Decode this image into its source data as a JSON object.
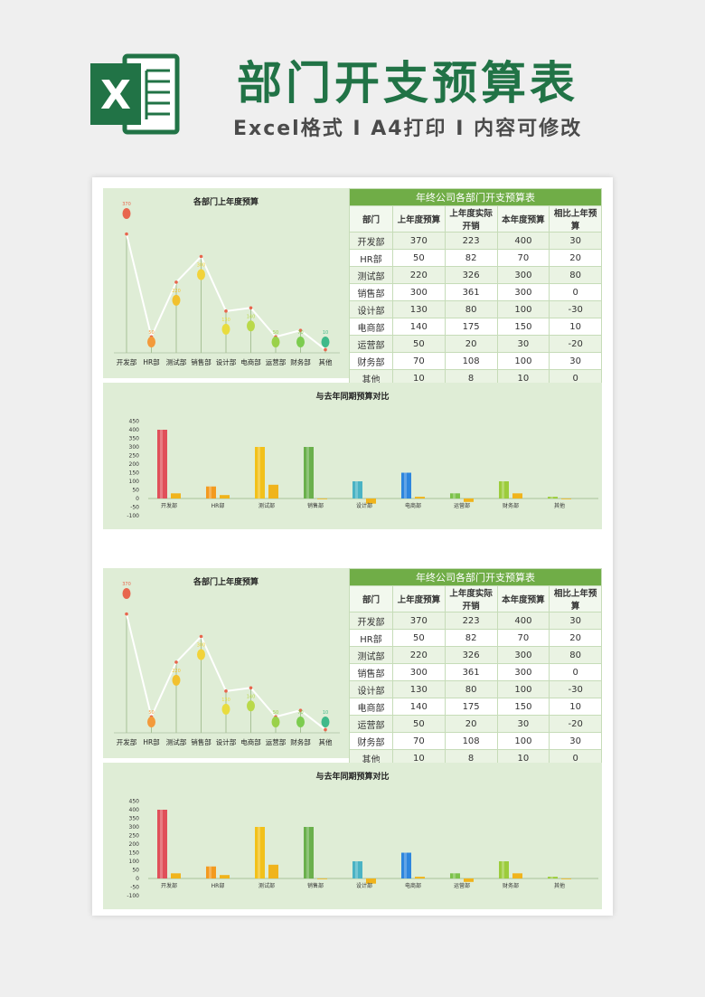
{
  "header": {
    "title": "部门开支预算表",
    "subtitle": "Excel格式 I A4打印 I 内容可修改",
    "logo_letter": "X",
    "brand_color": "#217346"
  },
  "table": {
    "title": "年终公司各部门开支预算表",
    "columns": [
      "部门",
      "上年度预算",
      "上年度实际开销",
      "本年度预算",
      "相比上年预算"
    ],
    "rows": [
      [
        "开发部",
        "370",
        "223",
        "400",
        "30"
      ],
      [
        "HR部",
        "50",
        "82",
        "70",
        "20"
      ],
      [
        "测试部",
        "220",
        "326",
        "300",
        "80"
      ],
      [
        "销售部",
        "300",
        "361",
        "300",
        "0"
      ],
      [
        "设计部",
        "130",
        "80",
        "100",
        "-30"
      ],
      [
        "电商部",
        "140",
        "175",
        "150",
        "10"
      ],
      [
        "运营部",
        "50",
        "20",
        "30",
        "-20"
      ],
      [
        "财务部",
        "70",
        "108",
        "100",
        "30"
      ],
      [
        "其他",
        "10",
        "8",
        "10",
        "0"
      ]
    ]
  },
  "chart_data": [
    {
      "type": "line",
      "title": "各部门上年度预算",
      "categories": [
        "开发部",
        "HR部",
        "测试部",
        "销售部",
        "设计部",
        "电商部",
        "运营部",
        "财务部",
        "其他"
      ],
      "values": [
        370,
        50,
        220,
        300,
        130,
        140,
        50,
        70,
        10
      ],
      "ylim": [
        0,
        400
      ],
      "marker_colors": [
        "#e8664e",
        "#f39a3b",
        "#f2c12e",
        "#f2d33a",
        "#e9dc3e",
        "#b9d94a",
        "#9ad14a",
        "#7ccc4f",
        "#3fb98a"
      ]
    },
    {
      "type": "bar",
      "title": "与去年同期预算对比",
      "categories": [
        "开发部",
        "HR部",
        "测试部",
        "销售部",
        "设计部",
        "电商部",
        "运营部",
        "财务部",
        "其他"
      ],
      "series": [
        {
          "values": [
            400,
            70,
            300,
            300,
            100,
            150,
            30,
            100,
            10
          ]
        },
        {
          "values": [
            30,
            20,
            80,
            0,
            -30,
            10,
            -20,
            30,
            0
          ]
        }
      ],
      "yticks": [
        "450",
        "400",
        "350",
        "300",
        "250",
        "200",
        "150",
        "100",
        "50",
        "0",
        "-50",
        "-100"
      ],
      "ylim": [
        -100,
        450
      ],
      "bar_colors": [
        "#e0505a",
        "#f39a1f",
        "#f2c11a",
        "#6ab04c",
        "#4ab3c4",
        "#2e86de",
        "#7cc24a",
        "#9ccc3c",
        "#9ccc3c"
      ],
      "secondary_color": "#f0b41c"
    }
  ]
}
